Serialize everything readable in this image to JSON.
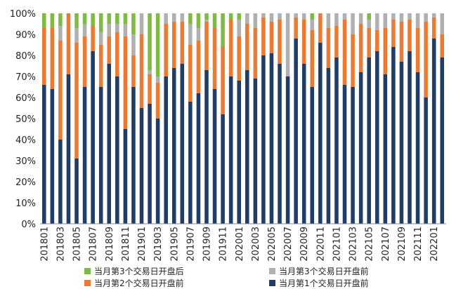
{
  "chart_data": {
    "type": "stacked-bar",
    "ylim": [
      0,
      100
    ],
    "yticks": [
      "0%",
      "10%",
      "20%",
      "30%",
      "40%",
      "50%",
      "60%",
      "70%",
      "80%",
      "90%",
      "100%"
    ],
    "categories": [
      "201801",
      "201802",
      "201803",
      "201804",
      "201805",
      "201806",
      "201807",
      "201808",
      "201809",
      "201810",
      "201811",
      "201812",
      "201901",
      "201902",
      "201903",
      "201904",
      "201905",
      "201906",
      "201907",
      "201908",
      "201909",
      "201910",
      "201911",
      "201912",
      "202001",
      "202002",
      "202003",
      "202004",
      "202005",
      "202006",
      "202007",
      "202008",
      "202009",
      "202010",
      "202011",
      "202012",
      "202101",
      "202102",
      "202103",
      "202104",
      "202105",
      "202106",
      "202107",
      "202108",
      "202109",
      "202110",
      "202111",
      "202112",
      "202201",
      "202202"
    ],
    "xtick_labels": [
      "201801",
      "201803",
      "201805",
      "201807",
      "201809",
      "201811",
      "201901",
      "201903",
      "201905",
      "201907",
      "201909",
      "201911",
      "202001",
      "202003",
      "202005",
      "202007",
      "202009",
      "202011",
      "202101",
      "202103",
      "202105",
      "202107",
      "202109",
      "202111",
      "202201"
    ],
    "series": [
      {
        "name": "当月第1个交易日开盘前",
        "color": "#1f3d66",
        "values": [
          66,
          64,
          40,
          71,
          31,
          65,
          82,
          65,
          76,
          70,
          45,
          65,
          55,
          57,
          50,
          70,
          74,
          76,
          58,
          62,
          73,
          64,
          52,
          70,
          68,
          73,
          69,
          80,
          81,
          76,
          70,
          88,
          76,
          65,
          86,
          74,
          79,
          66,
          65,
          72,
          79,
          82,
          71,
          84,
          77,
          82,
          72,
          60,
          88,
          79
        ]
      },
      {
        "name": "当月第2个交易日开盘前",
        "color": "#ec7a32",
        "values": [
          27,
          29,
          47,
          29,
          55,
          24,
          12,
          20,
          13,
          21,
          44,
          15,
          35,
          14,
          17,
          25,
          22,
          20,
          27,
          25,
          23,
          29,
          32,
          27,
          21,
          22,
          24,
          18,
          15,
          21,
          0,
          10,
          21,
          27,
          14,
          19,
          15,
          31,
          25,
          23,
          14,
          10,
          22,
          13,
          19,
          15,
          21,
          36,
          10,
          11
        ]
      },
      {
        "name": "当月第3个交易日开盘后",
        "color": "#7fba45",
        "values": [
          7,
          7,
          6,
          0,
          7,
          5,
          6,
          9,
          5,
          5,
          5,
          10,
          0,
          27,
          30,
          0,
          0,
          0,
          5,
          7,
          3,
          7,
          16,
          3,
          3,
          0,
          0,
          0,
          0,
          0,
          0,
          0,
          0,
          3,
          0,
          0,
          0,
          0,
          0,
          0,
          3,
          0,
          0,
          0,
          0,
          0,
          0,
          0,
          0,
          0
        ]
      },
      {
        "name": "当月第3个交易日开盘前",
        "color": "#b0b0b0",
        "values": [
          0,
          0,
          7,
          0,
          7,
          6,
          0,
          6,
          6,
          4,
          6,
          10,
          10,
          2,
          3,
          5,
          4,
          4,
          10,
          6,
          1,
          0,
          0,
          0,
          8,
          5,
          7,
          2,
          4,
          3,
          30,
          2,
          3,
          5,
          0,
          7,
          6,
          3,
          10,
          5,
          4,
          8,
          7,
          3,
          4,
          3,
          7,
          4,
          2,
          10
        ]
      }
    ],
    "legend": [
      {
        "label": "当月第3个交易日开盘后",
        "color": "#7fba45"
      },
      {
        "label": "当月第3个交易日开盘前",
        "color": "#b0b0b0"
      },
      {
        "label": "当月第2个交易日开盘前",
        "color": "#ec7a32"
      },
      {
        "label": "当月第1个交易日开盘前",
        "color": "#1f3d66"
      }
    ]
  }
}
